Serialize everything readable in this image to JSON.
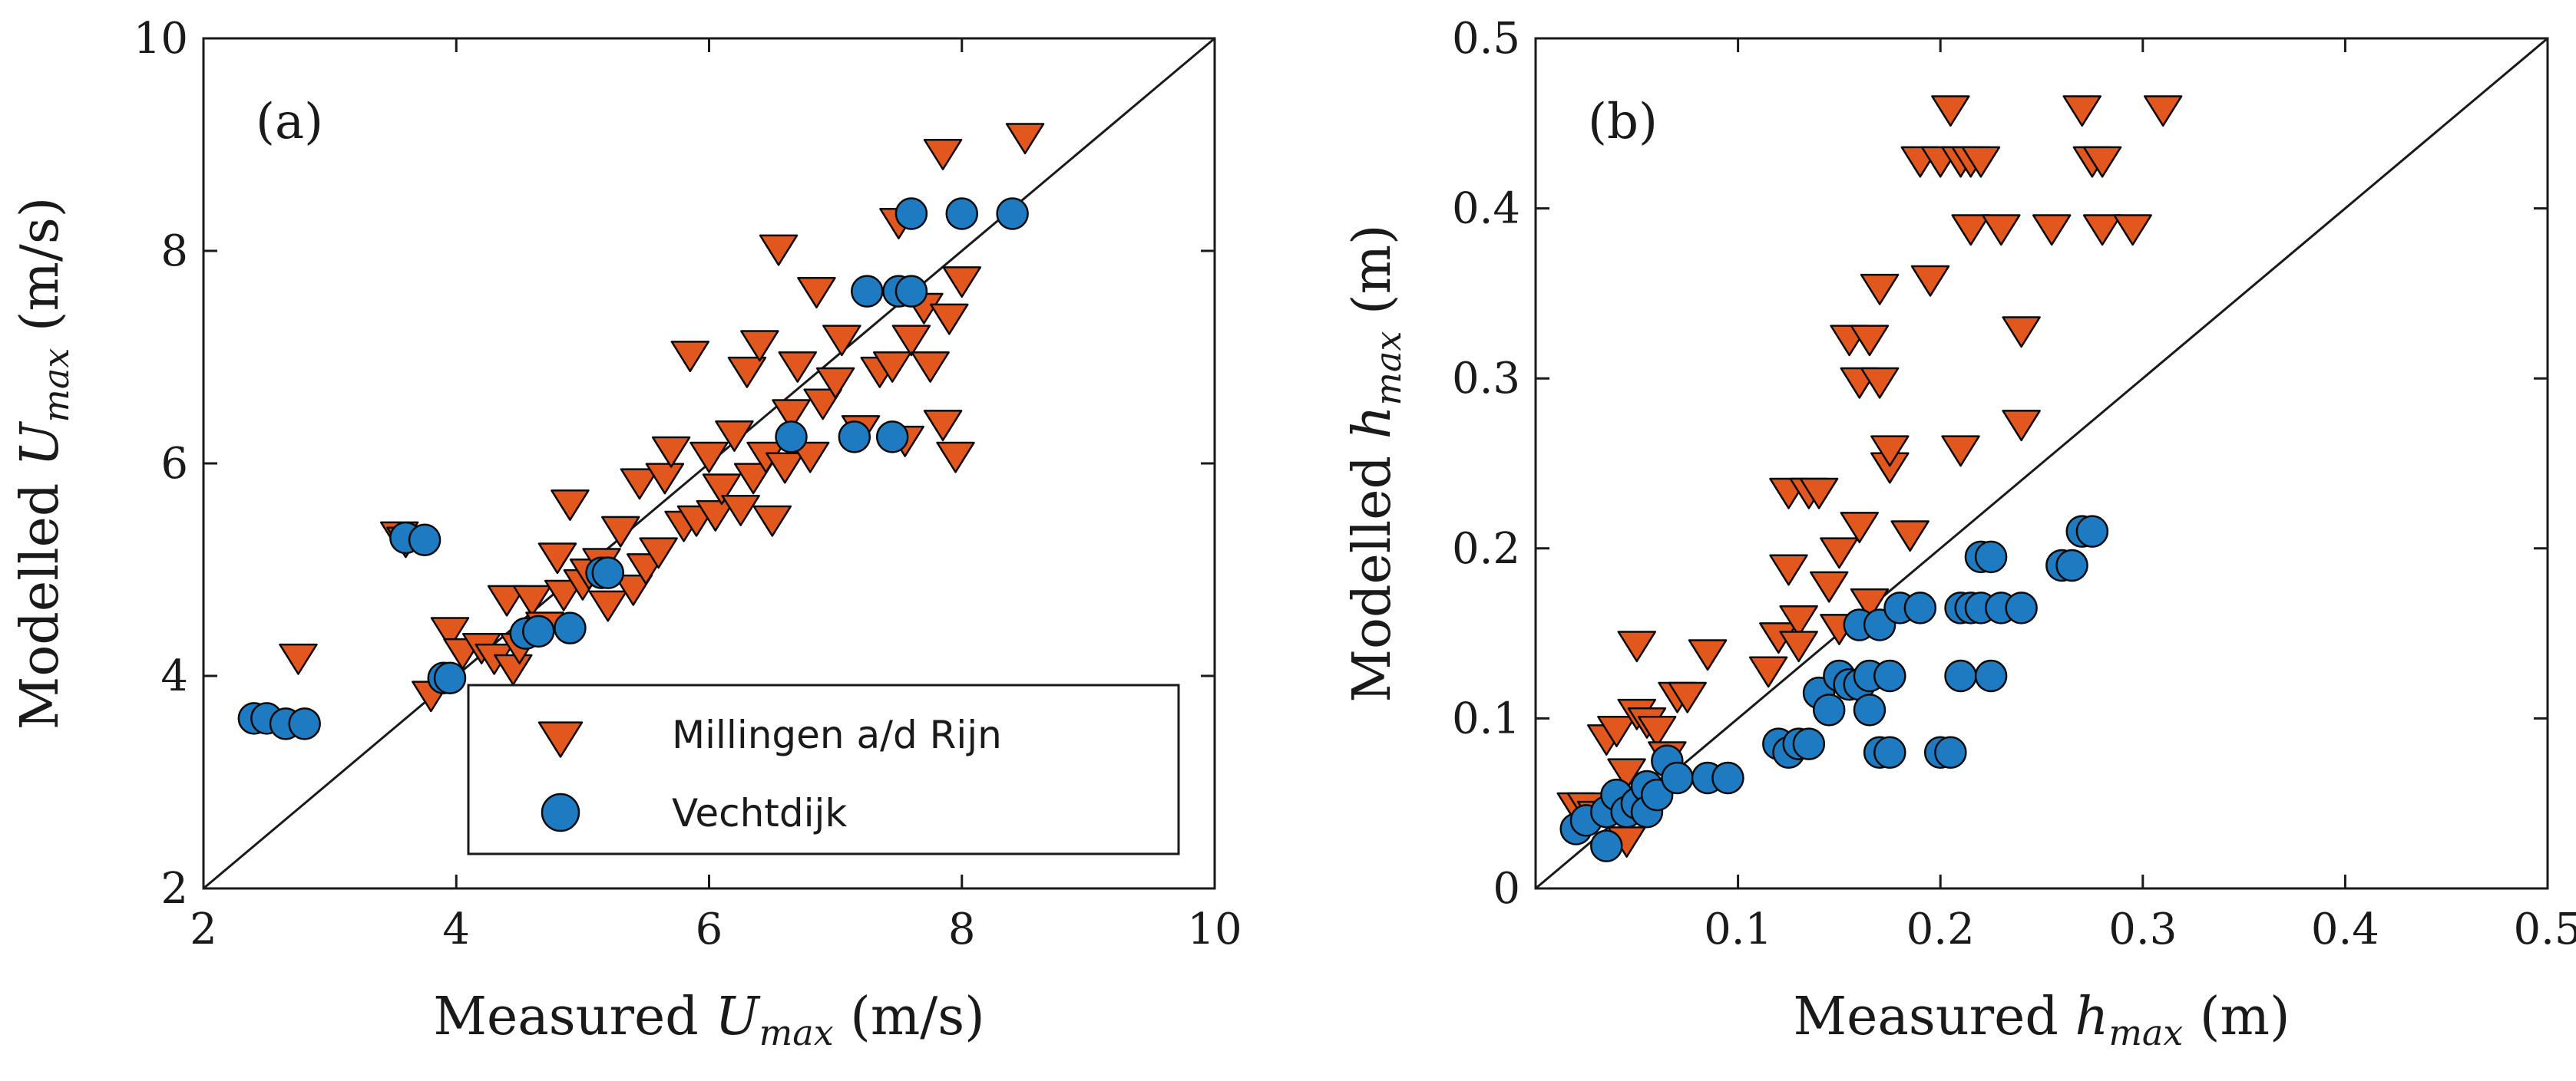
{
  "chart_data": [
    {
      "type": "scatter",
      "panel_label": "(a)",
      "xlabel": {
        "pre": "Measured ",
        "sym": "U",
        "sub": "max",
        "post": " (m/s)"
      },
      "ylabel": {
        "pre": "Modelled ",
        "sym": "U",
        "sub": "max",
        "post": " (m/s)"
      },
      "xlim": [
        2,
        10
      ],
      "ylim": [
        2,
        10
      ],
      "xticks": [
        2,
        4,
        6,
        8,
        10
      ],
      "yticks": [
        2,
        4,
        6,
        8,
        10
      ],
      "xtick_labels": [
        "2",
        "4",
        "6",
        "8",
        "10"
      ],
      "ytick_labels": [
        "2",
        "4",
        "6",
        "8",
        "10"
      ],
      "reference_line": "y = x",
      "legend": {
        "placement": "bottom-right",
        "entries": [
          {
            "label": "Millingen a/d Rijn",
            "marker": "triangle-down",
            "color": "#E2571E"
          },
          {
            "label": "Vechtdijk",
            "marker": "circle",
            "color": "#1F7BC1"
          }
        ]
      },
      "series": [
        {
          "legend_index": 0,
          "marker": "triangle-down",
          "color": "#E2571E",
          "points": [
            [
              2.75,
              4.2
            ],
            [
              3.55,
              5.35
            ],
            [
              3.6,
              5.3
            ],
            [
              3.8,
              3.85
            ],
            [
              3.95,
              4.45
            ],
            [
              4.05,
              4.25
            ],
            [
              4.2,
              4.3
            ],
            [
              4.3,
              4.2
            ],
            [
              4.4,
              4.75
            ],
            [
              4.45,
              4.1
            ],
            [
              4.5,
              4.3
            ],
            [
              4.6,
              4.75
            ],
            [
              4.7,
              4.5
            ],
            [
              4.8,
              5.15
            ],
            [
              4.85,
              4.8
            ],
            [
              4.9,
              5.65
            ],
            [
              5.0,
              4.9
            ],
            [
              5.05,
              5.0
            ],
            [
              5.15,
              5.1
            ],
            [
              5.2,
              4.7
            ],
            [
              5.3,
              5.4
            ],
            [
              5.4,
              4.85
            ],
            [
              5.45,
              5.85
            ],
            [
              5.5,
              5.05
            ],
            [
              5.6,
              5.2
            ],
            [
              5.65,
              5.9
            ],
            [
              5.7,
              6.15
            ],
            [
              5.8,
              5.45
            ],
            [
              5.85,
              7.05
            ],
            [
              5.9,
              5.5
            ],
            [
              6.0,
              6.1
            ],
            [
              6.05,
              5.55
            ],
            [
              6.1,
              5.8
            ],
            [
              6.2,
              6.3
            ],
            [
              6.25,
              5.6
            ],
            [
              6.3,
              6.9
            ],
            [
              6.35,
              5.9
            ],
            [
              6.4,
              7.15
            ],
            [
              6.45,
              6.1
            ],
            [
              6.5,
              5.5
            ],
            [
              6.55,
              8.05
            ],
            [
              6.6,
              6.0
            ],
            [
              6.65,
              6.5
            ],
            [
              6.7,
              6.95
            ],
            [
              6.8,
              6.1
            ],
            [
              6.85,
              7.65
            ],
            [
              6.9,
              6.6
            ],
            [
              7.0,
              6.8
            ],
            [
              7.05,
              7.2
            ],
            [
              7.2,
              6.35
            ],
            [
              7.35,
              6.9
            ],
            [
              7.45,
              6.95
            ],
            [
              7.5,
              8.3
            ],
            [
              7.55,
              6.25
            ],
            [
              7.6,
              7.2
            ],
            [
              7.7,
              7.5
            ],
            [
              7.75,
              6.95
            ],
            [
              7.85,
              6.4
            ],
            [
              7.85,
              8.95
            ],
            [
              7.9,
              7.4
            ],
            [
              7.95,
              6.1
            ],
            [
              8.0,
              7.75
            ],
            [
              8.5,
              9.1
            ]
          ]
        },
        {
          "legend_index": 1,
          "marker": "circle",
          "color": "#1F7BC1",
          "points": [
            [
              2.4,
              3.6
            ],
            [
              2.5,
              3.6
            ],
            [
              2.65,
              3.55
            ],
            [
              2.8,
              3.55
            ],
            [
              3.6,
              5.3
            ],
            [
              3.75,
              5.28
            ],
            [
              3.9,
              3.98
            ],
            [
              3.95,
              3.98
            ],
            [
              4.55,
              4.4
            ],
            [
              4.65,
              4.42
            ],
            [
              4.9,
              4.45
            ],
            [
              5.15,
              4.97
            ],
            [
              5.2,
              4.97
            ],
            [
              6.65,
              6.25
            ],
            [
              7.15,
              6.25
            ],
            [
              7.25,
              7.62
            ],
            [
              7.45,
              6.25
            ],
            [
              7.5,
              7.62
            ],
            [
              7.6,
              7.62
            ],
            [
              7.6,
              8.35
            ],
            [
              8.0,
              8.35
            ],
            [
              8.4,
              8.35
            ]
          ]
        }
      ]
    },
    {
      "type": "scatter",
      "panel_label": "(b)",
      "xlabel": {
        "pre": "Measured ",
        "sym": "h",
        "sub": "max",
        "post": " (m)"
      },
      "ylabel": {
        "pre": "Modelled ",
        "sym": "h",
        "sub": "max",
        "post": " (m)"
      },
      "xlim": [
        0,
        0.5
      ],
      "ylim": [
        0,
        0.5
      ],
      "xticks": [
        0.1,
        0.2,
        0.3,
        0.4,
        0.5
      ],
      "yticks": [
        0,
        0.1,
        0.2,
        0.3,
        0.4,
        0.5
      ],
      "xtick_labels": [
        "0.1",
        "0.2",
        "0.3",
        "0.4",
        "0.5"
      ],
      "ytick_labels": [
        "0",
        "0.1",
        "0.2",
        "0.3",
        "0.4",
        "0.5"
      ],
      "reference_line": "y = x",
      "series": [
        {
          "legend_index": 0,
          "marker": "triangle-down",
          "color": "#E2571E",
          "points": [
            [
              0.02,
              0.05
            ],
            [
              0.025,
              0.05
            ],
            [
              0.03,
              0.045
            ],
            [
              0.035,
              0.09
            ],
            [
              0.04,
              0.095
            ],
            [
              0.045,
              0.03
            ],
            [
              0.045,
              0.07
            ],
            [
              0.05,
              0.145
            ],
            [
              0.05,
              0.105
            ],
            [
              0.055,
              0.1
            ],
            [
              0.06,
              0.095
            ],
            [
              0.065,
              0.08
            ],
            [
              0.07,
              0.115
            ],
            [
              0.075,
              0.115
            ],
            [
              0.085,
              0.14
            ],
            [
              0.115,
              0.13
            ],
            [
              0.12,
              0.15
            ],
            [
              0.125,
              0.235
            ],
            [
              0.125,
              0.19
            ],
            [
              0.13,
              0.16
            ],
            [
              0.13,
              0.145
            ],
            [
              0.135,
              0.235
            ],
            [
              0.14,
              0.235
            ],
            [
              0.145,
              0.18
            ],
            [
              0.15,
              0.2
            ],
            [
              0.15,
              0.155
            ],
            [
              0.155,
              0.325
            ],
            [
              0.16,
              0.3
            ],
            [
              0.16,
              0.215
            ],
            [
              0.165,
              0.325
            ],
            [
              0.165,
              0.17
            ],
            [
              0.17,
              0.3
            ],
            [
              0.17,
              0.355
            ],
            [
              0.175,
              0.25
            ],
            [
              0.175,
              0.26
            ],
            [
              0.185,
              0.21
            ],
            [
              0.19,
              0.43
            ],
            [
              0.195,
              0.36
            ],
            [
              0.2,
              0.43
            ],
            [
              0.205,
              0.46
            ],
            [
              0.21,
              0.26
            ],
            [
              0.21,
              0.43
            ],
            [
              0.215,
              0.39
            ],
            [
              0.215,
              0.43
            ],
            [
              0.22,
              0.43
            ],
            [
              0.23,
              0.39
            ],
            [
              0.24,
              0.33
            ],
            [
              0.24,
              0.275
            ],
            [
              0.255,
              0.39
            ],
            [
              0.27,
              0.46
            ],
            [
              0.275,
              0.43
            ],
            [
              0.28,
              0.43
            ],
            [
              0.28,
              0.39
            ],
            [
              0.295,
              0.39
            ],
            [
              0.31,
              0.46
            ]
          ]
        },
        {
          "legend_index": 1,
          "marker": "circle",
          "color": "#1F7BC1",
          "points": [
            [
              0.02,
              0.035
            ],
            [
              0.025,
              0.04
            ],
            [
              0.035,
              0.045
            ],
            [
              0.035,
              0.025
            ],
            [
              0.04,
              0.055
            ],
            [
              0.045,
              0.045
            ],
            [
              0.05,
              0.05
            ],
            [
              0.055,
              0.06
            ],
            [
              0.055,
              0.045
            ],
            [
              0.06,
              0.055
            ],
            [
              0.065,
              0.075
            ],
            [
              0.07,
              0.065
            ],
            [
              0.085,
              0.065
            ],
            [
              0.095,
              0.065
            ],
            [
              0.12,
              0.085
            ],
            [
              0.125,
              0.08
            ],
            [
              0.13,
              0.085
            ],
            [
              0.135,
              0.085
            ],
            [
              0.14,
              0.115
            ],
            [
              0.145,
              0.105
            ],
            [
              0.15,
              0.125
            ],
            [
              0.155,
              0.12
            ],
            [
              0.16,
              0.155
            ],
            [
              0.16,
              0.12
            ],
            [
              0.165,
              0.125
            ],
            [
              0.165,
              0.105
            ],
            [
              0.17,
              0.155
            ],
            [
              0.17,
              0.08
            ],
            [
              0.175,
              0.125
            ],
            [
              0.175,
              0.08
            ],
            [
              0.18,
              0.165
            ],
            [
              0.19,
              0.165
            ],
            [
              0.2,
              0.08
            ],
            [
              0.205,
              0.08
            ],
            [
              0.21,
              0.165
            ],
            [
              0.21,
              0.125
            ],
            [
              0.215,
              0.165
            ],
            [
              0.22,
              0.195
            ],
            [
              0.22,
              0.165
            ],
            [
              0.225,
              0.125
            ],
            [
              0.225,
              0.195
            ],
            [
              0.23,
              0.165
            ],
            [
              0.24,
              0.165
            ],
            [
              0.26,
              0.19
            ],
            [
              0.265,
              0.19
            ],
            [
              0.27,
              0.21
            ],
            [
              0.275,
              0.21
            ]
          ]
        }
      ]
    }
  ]
}
